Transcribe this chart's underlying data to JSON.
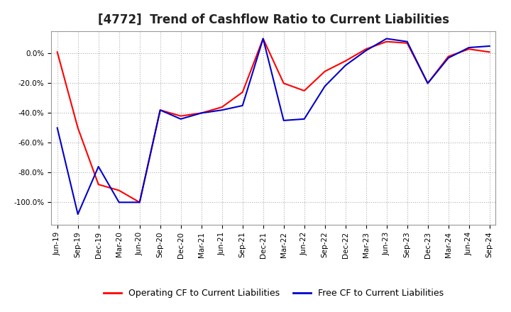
{
  "title": "[4772]  Trend of Cashflow Ratio to Current Liabilities",
  "x_labels": [
    "Jun-19",
    "Sep-19",
    "Dec-19",
    "Mar-20",
    "Jun-20",
    "Sep-20",
    "Dec-20",
    "Mar-21",
    "Jun-21",
    "Sep-21",
    "Dec-21",
    "Mar-22",
    "Jun-22",
    "Sep-22",
    "Dec-22",
    "Mar-23",
    "Jun-23",
    "Sep-23",
    "Dec-23",
    "Mar-24",
    "Jun-24",
    "Sep-24"
  ],
  "operating_cf": [
    1.0,
    -50,
    -88,
    -92,
    -100,
    -38,
    -42,
    -40,
    -36,
    -26,
    10,
    -20,
    -25,
    -12,
    -5,
    3,
    8,
    7,
    -20,
    -2,
    3,
    1
  ],
  "free_cf": [
    -50,
    -108,
    -76,
    -100,
    -100,
    -38,
    -44,
    -40,
    -38,
    -35,
    10,
    -45,
    -44,
    -22,
    -8,
    2,
    10,
    8,
    -20,
    -3,
    4,
    5
  ],
  "ylim": [
    -115,
    15
  ],
  "yticks": [
    0,
    -20,
    -40,
    -60,
    -80,
    -100
  ],
  "operating_color": "#ff0000",
  "free_color": "#0000cc",
  "background_color": "#ffffff",
  "plot_bg_color": "#ffffff",
  "grid_color": "#b0b0b0",
  "legend_operating": "Operating CF to Current Liabilities",
  "legend_free": "Free CF to Current Liabilities",
  "title_fontsize": 12,
  "tick_fontsize": 7.5
}
